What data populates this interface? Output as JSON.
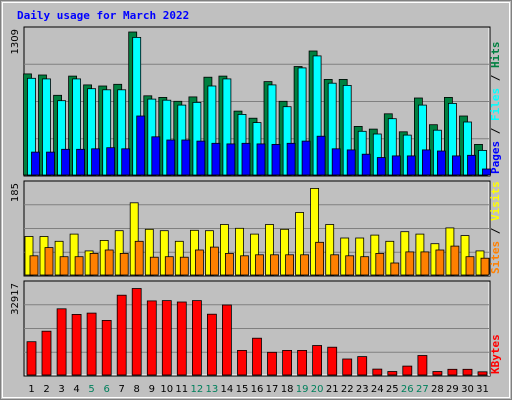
{
  "chart_data": {
    "type": "bar",
    "title": "Daily usage for March 2022",
    "x": [
      "1",
      "2",
      "3",
      "4",
      "5",
      "6",
      "7",
      "8",
      "9",
      "10",
      "11",
      "12",
      "13",
      "14",
      "15",
      "16",
      "17",
      "18",
      "19",
      "20",
      "21",
      "22",
      "23",
      "24",
      "25",
      "26",
      "27",
      "28",
      "29",
      "30",
      "31"
    ],
    "weekend_days": [
      "5",
      "6",
      "12",
      "13",
      "19",
      "20",
      "26",
      "27"
    ],
    "colors": {
      "hits": "#008040",
      "files": "#00ffff",
      "pages": "#0000ff",
      "visits": "#ffff00",
      "sites": "#ff8000",
      "kbytes": "#ff0000",
      "weekend_tick": "#00805c",
      "weekday_tick": "#000000",
      "plot_bg": "#c0c0c0",
      "frame_bg": "#c0c0c0",
      "title": "#0000ff"
    },
    "panels": [
      {
        "id": "hits-files-pages",
        "ymax_label": "1309",
        "ymax": 1309,
        "series": [
          {
            "name": "Hits",
            "color_key": "hits",
            "values": [
              925,
              915,
              730,
              905,
              825,
              815,
              830,
              1309,
              725,
              710,
              675,
              715,
              895,
              905,
              585,
              520,
              855,
              675,
              993,
              1135,
              875,
              875,
              445,
              420,
              560,
              395,
              705,
              460,
              710,
              540,
              280
            ]
          },
          {
            "name": "Files",
            "color_key": "files",
            "values": [
              885,
              880,
              680,
              880,
              790,
              780,
              780,
              1260,
              695,
              685,
              640,
              665,
              815,
              880,
              555,
              480,
              825,
              625,
              980,
              1090,
              840,
              820,
              400,
              375,
              515,
              365,
              640,
              410,
              655,
              485,
              225
            ]
          },
          {
            "name": "Pages",
            "color_key": "pages",
            "values": [
              210,
              210,
              235,
              235,
              240,
              250,
              240,
              540,
              350,
              320,
              320,
              310,
              290,
              285,
              290,
              285,
              280,
              290,
              310,
              355,
              240,
              230,
              190,
              160,
              175,
              175,
              230,
              220,
              175,
              180,
              55
            ]
          }
        ],
        "legend": [
          "Hits",
          "Files",
          "Pages"
        ]
      },
      {
        "id": "visits-sites",
        "ymax_label": "185",
        "ymax": 185,
        "series": [
          {
            "name": "Visits",
            "color_key": "visits",
            "values": [
              80,
              80,
              70,
              85,
              50,
              72,
              92,
              150,
              95,
              92,
              70,
              93,
              92,
              105,
              97,
              85,
              105,
              95,
              130,
              180,
              105,
              77,
              77,
              83,
              70,
              90,
              85,
              65,
              98,
              82,
              50
            ]
          },
          {
            "name": "Sites",
            "color_key": "sites",
            "values": [
              40,
              57,
              38,
              38,
              45,
              52,
              45,
              70,
              37,
              38,
              37,
              52,
              58,
              45,
              40,
              42,
              42,
              42,
              42,
              68,
              42,
              40,
              38,
              45,
              25,
              48,
              48,
              52,
              60,
              38,
              35
            ]
          }
        ],
        "legend": [
          "Visits",
          "Sites"
        ]
      },
      {
        "id": "kbytes",
        "ymax_label": "32917",
        "ymax": 32917,
        "series": [
          {
            "name": "KBytes",
            "color_key": "kbytes",
            "values": [
              12300,
              16200,
              24500,
              22400,
              22900,
              20200,
              29500,
              32000,
              27400,
              27500,
              27000,
              27500,
              22500,
              25900,
              9100,
              13600,
              8400,
              9100,
              9100,
              10900,
              10300,
              5900,
              6800,
              2200,
              1300,
              3300,
              7200,
              1300,
              2100,
              2100,
              1200
            ]
          }
        ],
        "legend": [
          "KBytes"
        ]
      }
    ]
  }
}
